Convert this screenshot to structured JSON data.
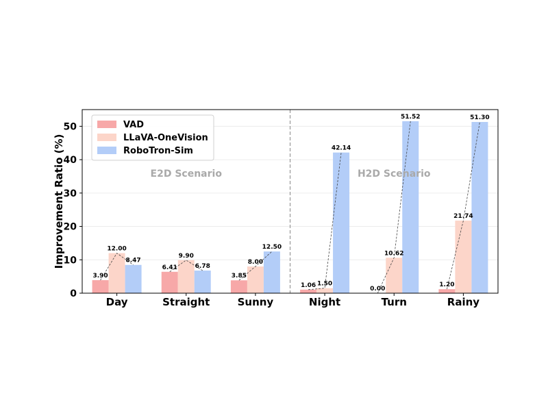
{
  "chart_data": {
    "type": "bar",
    "categories": [
      "Day",
      "Straight",
      "Sunny",
      "Night",
      "Turn",
      "Rainy"
    ],
    "series": [
      {
        "name": "VAD",
        "values": [
          3.9,
          6.41,
          3.85,
          1.06,
          0.0,
          1.2
        ],
        "color": "#f7a8a8"
      },
      {
        "name": "LLaVA-OneVision",
        "values": [
          12.0,
          9.9,
          8.0,
          1.5,
          10.62,
          21.74
        ],
        "color": "#fcd5c9"
      },
      {
        "name": "RoboTron-Sim",
        "values": [
          8.47,
          6.78,
          12.5,
          42.14,
          51.52,
          51.3
        ],
        "color": "#b3cdf8"
      }
    ],
    "data_labels": [
      [
        "3.90",
        "6.41",
        "3.85",
        "1.06",
        "0.00",
        "1.20"
      ],
      [
        "12.00",
        "9.90",
        "8.00",
        "1.50",
        "10.62",
        "21.74"
      ],
      [
        "8.47",
        "6.78",
        "12.50",
        "42.14",
        "51.52",
        "51.30"
      ]
    ],
    "ylabel": "Improvement Ratio (%)",
    "xlabel": "",
    "ylim": [
      0,
      55
    ],
    "yticks": [
      0,
      10,
      20,
      30,
      40,
      50
    ],
    "regions": [
      {
        "label": "E2D Scenario",
        "categories": [
          "Day",
          "Straight",
          "Sunny"
        ]
      },
      {
        "label": "H2D Scenario",
        "categories": [
          "Night",
          "Turn",
          "Rainy"
        ]
      }
    ],
    "grid": true,
    "legend_position": "top-left"
  }
}
